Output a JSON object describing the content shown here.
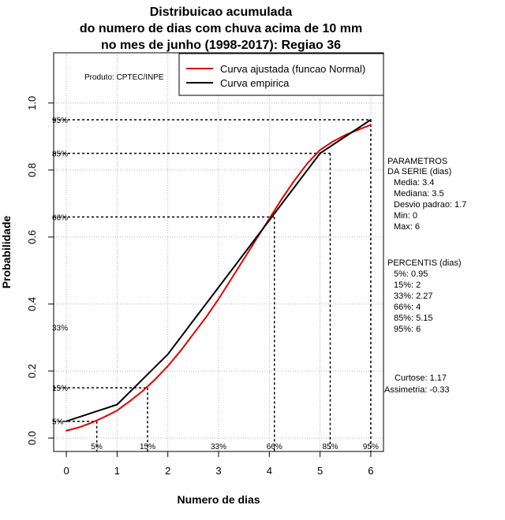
{
  "chart_data": {
    "type": "line",
    "title_lines": [
      "Distribuicao acumulada",
      "do numero de dias com chuva acima de 10 mm",
      "no mes de junho (1998-2017): Regiao 36"
    ],
    "xlabel": "Numero de dias",
    "ylabel": "Probabilidade",
    "xlim": [
      -0.25,
      6.25
    ],
    "ylim": [
      -0.04,
      1.15
    ],
    "x_ticks": [
      0,
      1,
      2,
      3,
      4,
      5,
      6
    ],
    "y_ticks": [
      0.0,
      0.2,
      0.4,
      0.6,
      0.8,
      1.0
    ],
    "y_tick_labels": [
      "0.0",
      "0.2",
      "0.4",
      "0.6",
      "0.8",
      "1.0"
    ],
    "grid": true,
    "product_label": "Produto: CPTEC/INPE",
    "legend": {
      "position": "top-right",
      "entries": [
        {
          "label": "Curva ajustada (funcao Normal)",
          "color": "#e00000"
        },
        {
          "label": "Curva empirica",
          "color": "#000000"
        }
      ]
    },
    "series": [
      {
        "name": "Curva ajustada (funcao Normal)",
        "color": "#e00000",
        "x": [
          0,
          0.25,
          0.5,
          0.75,
          1.0,
          1.25,
          1.5,
          1.75,
          2.0,
          2.25,
          2.5,
          2.75,
          3.0,
          3.25,
          3.5,
          3.75,
          4.0,
          4.25,
          4.5,
          4.75,
          5.0,
          5.25,
          5.5,
          5.75,
          6.0
        ],
        "y": [
          0.022,
          0.032,
          0.046,
          0.063,
          0.082,
          0.11,
          0.14,
          0.175,
          0.215,
          0.26,
          0.31,
          0.36,
          0.415,
          0.475,
          0.535,
          0.595,
          0.655,
          0.715,
          0.77,
          0.82,
          0.86,
          0.885,
          0.905,
          0.92,
          0.935
        ]
      },
      {
        "name": "Curva empirica",
        "color": "#000000",
        "x": [
          0,
          1,
          2,
          3,
          4,
          5,
          6
        ],
        "y": [
          0.05,
          0.1,
          0.25,
          0.45,
          0.65,
          0.85,
          0.95
        ]
      }
    ],
    "percentile_markers": [
      {
        "label": "5%",
        "x": 0.6,
        "y": 0.05,
        "x_label": "5%"
      },
      {
        "label": "15%",
        "x": 1.6,
        "y": 0.15,
        "x_label": "15%"
      },
      {
        "label": "66%",
        "x": 4.1,
        "y": 0.66,
        "x_label": "66%"
      },
      {
        "label": "85%",
        "x": 5.2,
        "y": 0.85,
        "x_label": "85%"
      },
      {
        "label": "95%",
        "x": 6.0,
        "y": 0.95,
        "x_label": "95%"
      }
    ],
    "extra_left_label": {
      "text": "33%",
      "y": 0.33
    },
    "extra_bottom_label": {
      "text": "33%",
      "x": 3.0
    },
    "side_panel": {
      "parametros_title": [
        "PARAMETROS",
        "DA SERIE (dias)"
      ],
      "parametros": [
        "Media: 3.4",
        "Mediana: 3.5",
        "Desvio padrao: 1.7",
        "Min: 0",
        "Max: 6"
      ],
      "percentis_title": "PERCENTIS (dias)",
      "percentis": [
        "5%: 0.95",
        "15%: 2",
        "33%: 2.27",
        "66%: 4",
        "85%: 5.15",
        "95%: 6"
      ],
      "curtose": "Curtose: 1.17",
      "assimetria": "Assimetria: -0.33"
    }
  }
}
